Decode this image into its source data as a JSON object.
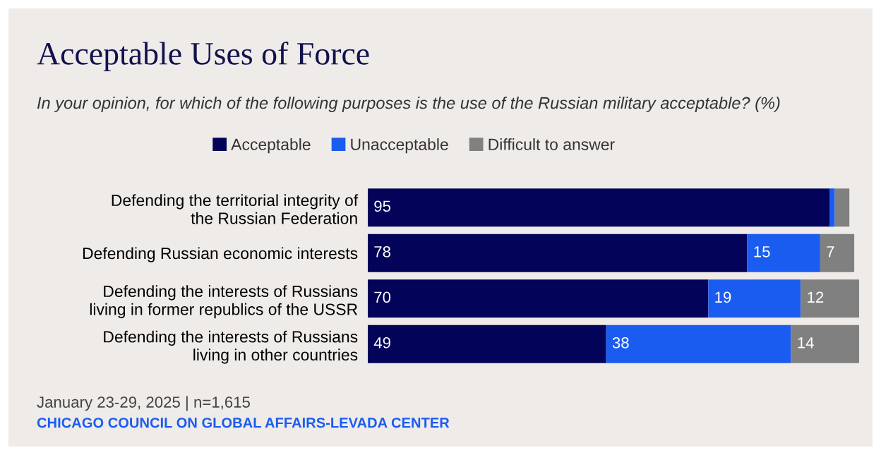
{
  "chart_data": {
    "type": "bar",
    "orientation": "horizontal",
    "stacked": true,
    "title": "Acceptable Uses of Force",
    "subtitle": "In your opinion, for which of the following purposes is the use of the Russian military acceptable? (%)",
    "categories": [
      "Defending the territorial integrity of\nthe Russian Federation",
      "Defending Russian economic interests",
      "Defending the interests of Russians\nliving in former republics of the USSR",
      "Defending the interests of Russians\nliving in other countries"
    ],
    "series": [
      {
        "name": "Acceptable",
        "color": "#03035a",
        "values": [
          95,
          78,
          70,
          49
        ],
        "value_labels": [
          "95",
          "78",
          "70",
          "49"
        ]
      },
      {
        "name": "Unacceptable",
        "color": "#1b5cf0",
        "values": [
          1,
          15,
          19,
          38
        ],
        "value_labels": [
          null,
          "15",
          "19",
          "38"
        ]
      },
      {
        "name": "Difficult to answer",
        "color": "#808080",
        "values": [
          3,
          7,
          12,
          14
        ],
        "value_labels": [
          null,
          "7",
          "12",
          "14"
        ]
      }
    ],
    "legend": "top",
    "annotations": [
      "January 23-29, 2025 | n=1,615",
      "CHICAGO COUNCIL ON GLOBAL AFFAIRS-LEVADA CENTER"
    ]
  }
}
